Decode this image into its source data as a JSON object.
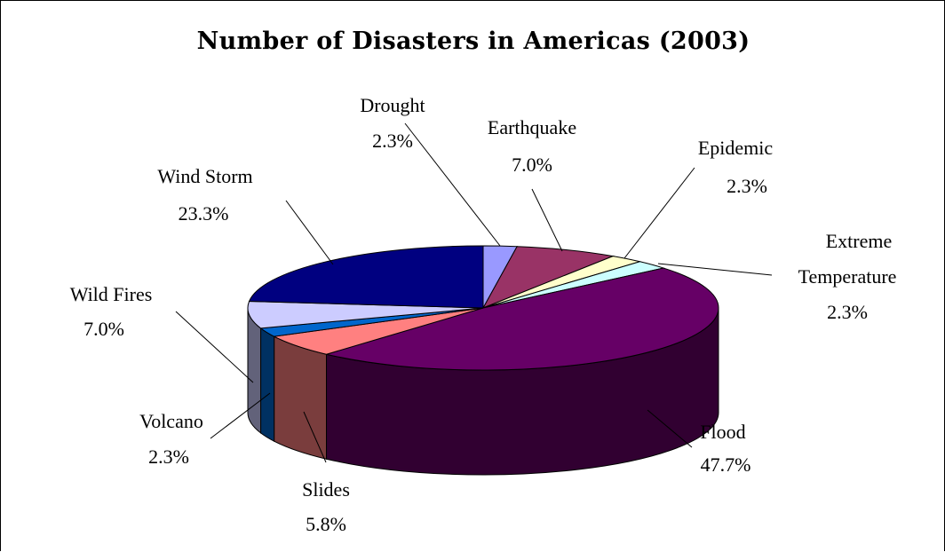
{
  "chart_data": {
    "type": "pie",
    "title": "Number of Disasters in Americas (2003)",
    "slices": [
      {
        "name": "Drought",
        "percent_label": "2.3%",
        "value": 2.3,
        "color": "#9999FF"
      },
      {
        "name": "Earthquake",
        "percent_label": "7.0%",
        "value": 7.0,
        "color": "#993366"
      },
      {
        "name": "Epidemic",
        "percent_label": "2.3%",
        "value": 2.3,
        "color": "#FFFFCC"
      },
      {
        "name": "Extreme Temperature",
        "percent_label": "2.3%",
        "value": 2.3,
        "color": "#CCFFFF"
      },
      {
        "name": "Flood",
        "percent_label": "47.7%",
        "value": 47.7,
        "color": "#660066"
      },
      {
        "name": "Slides",
        "percent_label": "5.8%",
        "value": 5.8,
        "color": "#FF8080"
      },
      {
        "name": "Volcano",
        "percent_label": "2.3%",
        "value": 2.3,
        "color": "#0066CC"
      },
      {
        "name": "Wild Fires",
        "percent_label": "7.0%",
        "value": 7.0,
        "color": "#CCCCFF"
      },
      {
        "name": "Wind Storm",
        "percent_label": "23.3%",
        "value": 23.3,
        "color": "#000080"
      }
    ],
    "legend": "none",
    "style": "3d-pie"
  }
}
